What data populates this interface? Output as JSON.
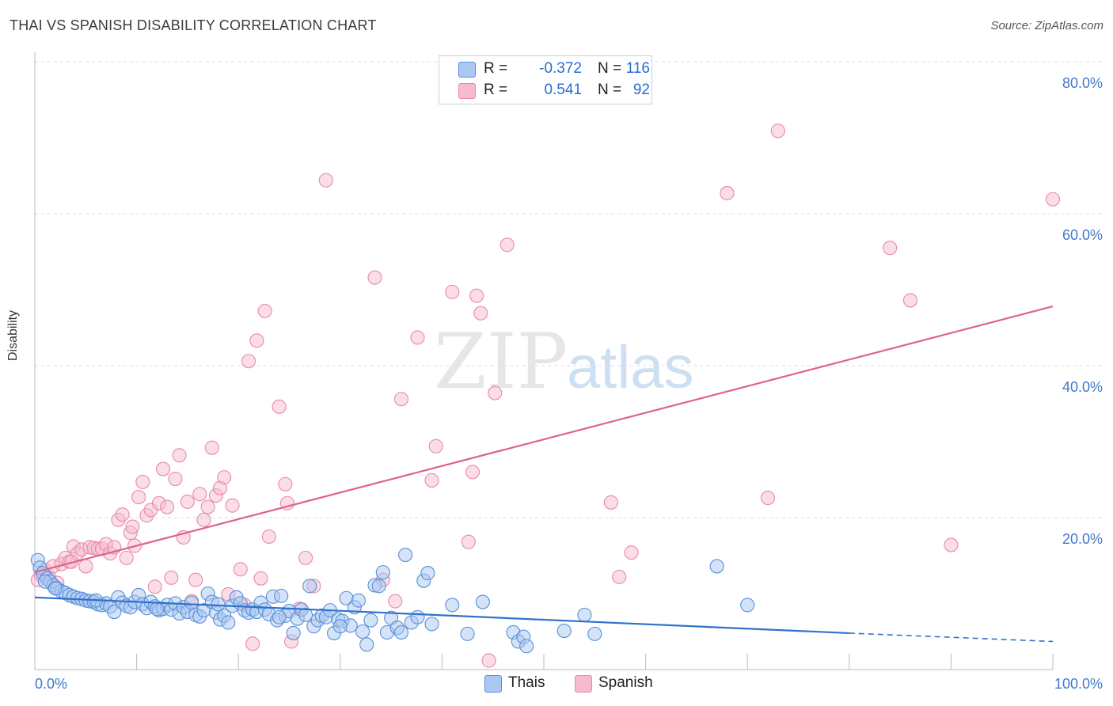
{
  "header": {
    "title": "THAI VS SPANISH DISABILITY CORRELATION CHART",
    "source": "Source: ZipAtlas.com"
  },
  "watermark": {
    "part1": "ZIP",
    "part2": "atlas"
  },
  "legend": {
    "rows": [
      {
        "r_label": "R =",
        "r_value": "-0.372",
        "n_label": "N =",
        "n_value": "116"
      },
      {
        "r_label": "R =",
        "r_value": "0.541",
        "n_label": "N =",
        "n_value": "92"
      }
    ]
  },
  "bottom_legend": {
    "items": [
      "Thais",
      "Spanish"
    ]
  },
  "colors": {
    "thai_fill": "#a9c8f2",
    "thai_stroke": "#5b8fd8",
    "thai_line": "#2f72cc",
    "spanish_fill": "#f6bccd",
    "spanish_stroke": "#e88aa8",
    "spanish_line": "#e0628c",
    "tick_label": "#3f78cc",
    "grid": "#dddddd"
  },
  "chart_data": {
    "type": "scatter",
    "title": "THAI VS SPANISH DISABILITY CORRELATION CHART",
    "xlabel": "",
    "ylabel": "Disability",
    "xlim": [
      0,
      100
    ],
    "ylim": [
      0,
      80
    ],
    "x_tick_labels": [
      "0.0%",
      "100.0%"
    ],
    "y_ticks": [
      20,
      40,
      60,
      80
    ],
    "y_tick_labels": [
      "20.0%",
      "40.0%",
      "60.0%",
      "80.0%"
    ],
    "grid": true,
    "legend_position": "top-center",
    "series": [
      {
        "name": "Thais",
        "r": -0.372,
        "n": 116,
        "trend": {
          "x0": 0,
          "y0": 9.5,
          "x1": 80,
          "y1": 4.8,
          "dashed_to_x": 100,
          "dashed_to_y": 3.7
        },
        "points": [
          [
            0.3,
            14.4
          ],
          [
            0.5,
            13.4
          ],
          [
            0.8,
            12.7
          ],
          [
            1.2,
            12.0
          ],
          [
            1.5,
            11.6
          ],
          [
            1.8,
            11.1
          ],
          [
            2.2,
            10.7
          ],
          [
            2.6,
            10.3
          ],
          [
            3.0,
            10.1
          ],
          [
            3.4,
            9.8
          ],
          [
            3.8,
            9.6
          ],
          [
            4.2,
            9.4
          ],
          [
            4.6,
            9.3
          ],
          [
            5.0,
            9.1
          ],
          [
            5.4,
            9.0
          ],
          [
            5.8,
            8.9
          ],
          [
            6.2,
            8.6
          ],
          [
            6.6,
            8.5
          ],
          [
            7.0,
            8.7
          ],
          [
            7.4,
            8.3
          ],
          [
            7.8,
            7.6
          ],
          [
            8.2,
            9.5
          ],
          [
            8.6,
            8.8
          ],
          [
            9.0,
            8.4
          ],
          [
            9.4,
            8.2
          ],
          [
            9.8,
            8.9
          ],
          [
            10.2,
            9.8
          ],
          [
            10.6,
            8.6
          ],
          [
            11.0,
            8.1
          ],
          [
            11.4,
            8.9
          ],
          [
            11.8,
            8.3
          ],
          [
            12.2,
            7.8
          ],
          [
            12.6,
            8.0
          ],
          [
            13.0,
            8.5
          ],
          [
            13.4,
            7.9
          ],
          [
            13.8,
            8.7
          ],
          [
            14.2,
            7.4
          ],
          [
            14.6,
            8.2
          ],
          [
            15.0,
            7.6
          ],
          [
            15.4,
            8.8
          ],
          [
            15.8,
            7.2
          ],
          [
            16.2,
            7.0
          ],
          [
            16.6,
            7.8
          ],
          [
            17.0,
            10.0
          ],
          [
            17.4,
            8.9
          ],
          [
            17.8,
            7.5
          ],
          [
            18.2,
            6.6
          ],
          [
            18.6,
            7.1
          ],
          [
            19.0,
            6.2
          ],
          [
            19.4,
            8.4
          ],
          [
            19.8,
            9.5
          ],
          [
            20.2,
            8.7
          ],
          [
            20.6,
            7.8
          ],
          [
            21.0,
            7.5
          ],
          [
            21.4,
            7.9
          ],
          [
            21.8,
            7.6
          ],
          [
            22.2,
            8.8
          ],
          [
            22.6,
            7.9
          ],
          [
            23.0,
            7.3
          ],
          [
            23.4,
            9.6
          ],
          [
            23.8,
            6.5
          ],
          [
            24.2,
            9.7
          ],
          [
            24.6,
            7.1
          ],
          [
            25.0,
            7.7
          ],
          [
            25.4,
            4.8
          ],
          [
            25.8,
            6.7
          ],
          [
            26.2,
            7.9
          ],
          [
            26.6,
            7.2
          ],
          [
            27.0,
            11.0
          ],
          [
            27.4,
            5.7
          ],
          [
            27.8,
            6.5
          ],
          [
            28.2,
            7.1
          ],
          [
            28.6,
            6.9
          ],
          [
            29.0,
            7.8
          ],
          [
            29.4,
            4.8
          ],
          [
            29.8,
            6.6
          ],
          [
            30.2,
            6.4
          ],
          [
            30.6,
            9.4
          ],
          [
            31.0,
            5.8
          ],
          [
            31.4,
            8.2
          ],
          [
            31.8,
            9.1
          ],
          [
            32.2,
            5.0
          ],
          [
            32.6,
            3.3
          ],
          [
            33.0,
            6.5
          ],
          [
            33.4,
            11.1
          ],
          [
            33.8,
            11.0
          ],
          [
            34.2,
            12.8
          ],
          [
            34.6,
            4.9
          ],
          [
            35.0,
            6.8
          ],
          [
            35.6,
            5.5
          ],
          [
            36.0,
            4.9
          ],
          [
            36.4,
            15.1
          ],
          [
            37.0,
            6.2
          ],
          [
            37.6,
            6.9
          ],
          [
            38.2,
            11.7
          ],
          [
            38.6,
            12.7
          ],
          [
            39.0,
            6.0
          ],
          [
            41.0,
            8.5
          ],
          [
            42.5,
            4.7
          ],
          [
            44.0,
            8.9
          ],
          [
            47.0,
            4.9
          ],
          [
            47.5,
            3.7
          ],
          [
            48.0,
            4.3
          ],
          [
            48.3,
            3.1
          ],
          [
            52.0,
            5.1
          ],
          [
            54.0,
            7.2
          ],
          [
            55.0,
            4.7
          ],
          [
            67.0,
            13.6
          ],
          [
            70.0,
            8.5
          ],
          [
            1.0,
            11.6
          ],
          [
            2.0,
            10.7
          ],
          [
            6.0,
            9.1
          ],
          [
            12.0,
            8.0
          ],
          [
            18.0,
            8.6
          ],
          [
            24.0,
            6.9
          ],
          [
            30.0,
            5.7
          ]
        ]
      },
      {
        "name": "Spanish",
        "r": 0.541,
        "n": 92,
        "trend": {
          "x0": 0,
          "y0": 12.8,
          "x1": 100,
          "y1": 47.8
        },
        "points": [
          [
            0.3,
            11.8
          ],
          [
            0.6,
            12.5
          ],
          [
            1.0,
            13.1
          ],
          [
            1.4,
            12.2
          ],
          [
            1.8,
            13.6
          ],
          [
            2.2,
            11.4
          ],
          [
            2.6,
            13.9
          ],
          [
            3.0,
            14.7
          ],
          [
            3.4,
            14.2
          ],
          [
            3.8,
            16.2
          ],
          [
            4.2,
            15.3
          ],
          [
            4.6,
            15.8
          ],
          [
            5.0,
            13.6
          ],
          [
            5.4,
            16.1
          ],
          [
            5.8,
            16.0
          ],
          [
            6.2,
            15.9
          ],
          [
            6.6,
            15.9
          ],
          [
            7.0,
            16.5
          ],
          [
            7.4,
            15.3
          ],
          [
            7.8,
            16.1
          ],
          [
            8.2,
            19.7
          ],
          [
            8.6,
            20.4
          ],
          [
            9.0,
            14.7
          ],
          [
            9.4,
            18.0
          ],
          [
            9.8,
            16.3
          ],
          [
            10.2,
            22.7
          ],
          [
            10.6,
            24.7
          ],
          [
            11.0,
            20.3
          ],
          [
            11.4,
            21.0
          ],
          [
            11.8,
            10.9
          ],
          [
            12.2,
            21.9
          ],
          [
            12.6,
            26.4
          ],
          [
            13.0,
            21.4
          ],
          [
            13.4,
            12.1
          ],
          [
            13.8,
            25.1
          ],
          [
            14.2,
            28.2
          ],
          [
            14.6,
            17.4
          ],
          [
            15.0,
            22.1
          ],
          [
            15.4,
            9.0
          ],
          [
            15.8,
            11.8
          ],
          [
            16.2,
            23.1
          ],
          [
            16.6,
            19.7
          ],
          [
            17.0,
            21.4
          ],
          [
            17.4,
            29.2
          ],
          [
            17.8,
            22.9
          ],
          [
            18.2,
            23.9
          ],
          [
            18.6,
            25.3
          ],
          [
            19.0,
            9.9
          ],
          [
            19.4,
            21.6
          ],
          [
            20.2,
            13.2
          ],
          [
            20.6,
            8.5
          ],
          [
            21.0,
            40.6
          ],
          [
            21.4,
            3.4
          ],
          [
            21.8,
            43.3
          ],
          [
            22.2,
            12.0
          ],
          [
            22.6,
            47.2
          ],
          [
            23.0,
            17.5
          ],
          [
            24.0,
            34.6
          ],
          [
            24.6,
            24.4
          ],
          [
            24.8,
            21.9
          ],
          [
            25.2,
            3.7
          ],
          [
            26.0,
            8.0
          ],
          [
            26.6,
            14.7
          ],
          [
            27.4,
            11.0
          ],
          [
            28.6,
            64.4
          ],
          [
            33.4,
            51.6
          ],
          [
            34.2,
            11.8
          ],
          [
            35.4,
            9.0
          ],
          [
            36.0,
            35.6
          ],
          [
            37.6,
            43.7
          ],
          [
            39.0,
            24.9
          ],
          [
            39.4,
            29.4
          ],
          [
            41.0,
            49.7
          ],
          [
            42.6,
            16.8
          ],
          [
            43.0,
            26.0
          ],
          [
            43.4,
            49.2
          ],
          [
            43.8,
            46.9
          ],
          [
            44.6,
            1.2
          ],
          [
            45.2,
            36.4
          ],
          [
            46.4,
            55.9
          ],
          [
            56.6,
            22.0
          ],
          [
            57.4,
            12.2
          ],
          [
            58.6,
            15.4
          ],
          [
            68.0,
            62.7
          ],
          [
            72.0,
            22.6
          ],
          [
            73.0,
            70.9
          ],
          [
            84.0,
            55.5
          ],
          [
            86.0,
            48.6
          ],
          [
            90.0,
            16.4
          ],
          [
            100.0,
            61.9
          ],
          [
            3.6,
            14.2
          ],
          [
            9.6,
            18.8
          ]
        ]
      }
    ]
  }
}
